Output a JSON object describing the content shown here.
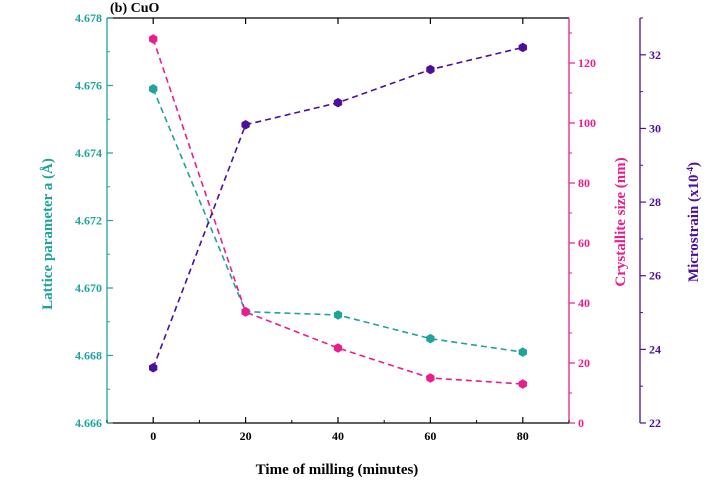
{
  "chart_data": {
    "type": "line",
    "title": "(b) CuO",
    "xlabel": "Time of milling (minutes)",
    "x": [
      0,
      20,
      40,
      60,
      80
    ],
    "x_ticks": [
      "0",
      "20",
      "40",
      "60",
      "80"
    ],
    "xlim": [
      -10,
      90
    ],
    "axes": {
      "left": {
        "label": "Lattice parameter a (Å)",
        "range": [
          4.666,
          4.678
        ],
        "ticks": [
          "4.666",
          "4.668",
          "4.670",
          "4.672",
          "4.674",
          "4.676",
          "4.678"
        ],
        "color": "#1fa39a"
      },
      "right_inner": {
        "label": "Crystallite size (nm)",
        "range": [
          0,
          135
        ],
        "ticks": [
          "0",
          "20",
          "40",
          "60",
          "80",
          "100",
          "120"
        ],
        "color": "#e91e8c"
      },
      "right_outer": {
        "label_main": "Microstrain (x10",
        "label_exp": "-4",
        "label_end": ")",
        "range": [
          22,
          33
        ],
        "ticks": [
          "22",
          "24",
          "26",
          "28",
          "30",
          "32"
        ],
        "color": "#4b0f9c"
      }
    },
    "series": [
      {
        "name": "Lattice parameter a",
        "axis": "left",
        "values": [
          4.6759,
          4.6693,
          4.6692,
          4.6685,
          4.6681
        ]
      },
      {
        "name": "Crystallite size",
        "axis": "right_inner",
        "values": [
          128,
          37,
          25,
          15,
          13
        ]
      },
      {
        "name": "Microstrain",
        "axis": "right_outer",
        "values": [
          23.5,
          30.1,
          30.7,
          31.6,
          32.2
        ]
      }
    ]
  }
}
